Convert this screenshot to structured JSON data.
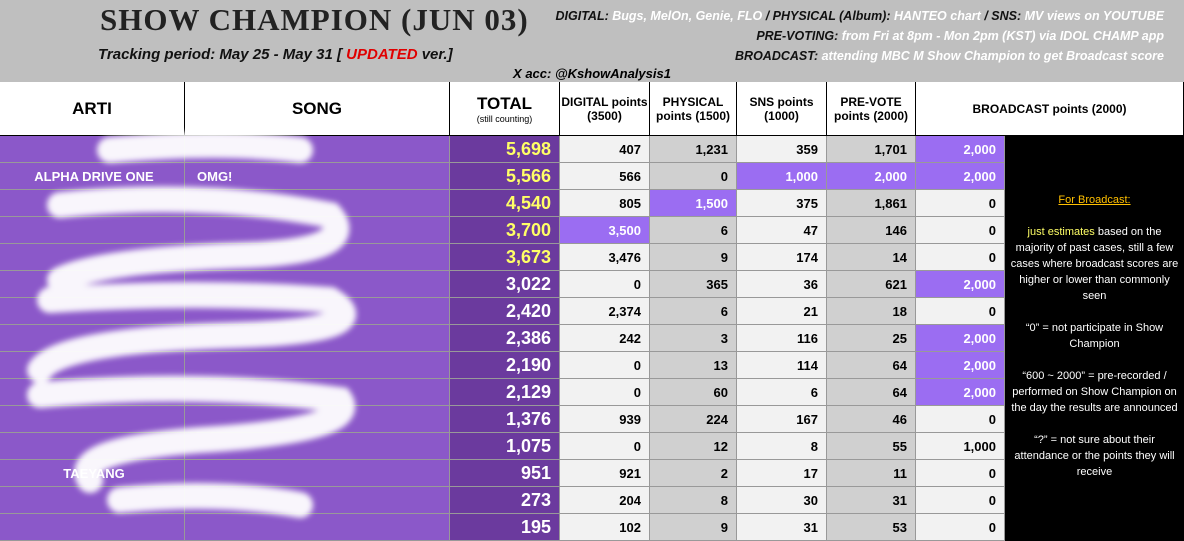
{
  "header": {
    "title": "SHOW CHAMPION (JUN 03)",
    "tracking_prefix": "Tracking period: May 25 - May 31 [",
    "tracking_updated": "UPDATED",
    "tracking_suffix": "ver.]",
    "account": "X acc: @KshowAnalysis1",
    "info_lines": [
      [
        {
          "label": "DIGITAL:",
          "value": "Bugs, MelOn, Genie, FLO"
        },
        {
          "label": "/ PHYSICAL (Album):",
          "value": "HANTEO chart"
        },
        {
          "label": "/ SNS:",
          "value": "MV views on YOUTUBE"
        }
      ],
      [
        {
          "label": "PRE-VOTING:",
          "value": "from Fri at 8pm - Mon 2pm (KST) via IDOL CHAMP app"
        }
      ],
      [
        {
          "label": "BROADCAST:",
          "value": "attending MBC M Show Champion to get Broadcast score"
        }
      ]
    ]
  },
  "table": {
    "columns": {
      "artist": "ARTI",
      "song": "SONG",
      "total": "TOTAL",
      "total_note": "(still counting)",
      "digital": "DIGITAL points (3500)",
      "physical": "PHYSICAL points (1500)",
      "sns": "SNS points (1000)",
      "prevote": "PRE-VOTE points (2000)",
      "broadcast": "BROADCAST points (2000)"
    },
    "rows": [
      {
        "total": "5,698",
        "digital": "407",
        "physical": "1,231",
        "sns": "359",
        "prevote": "1,701",
        "broadcast": "2,000",
        "highlight": [
          "total",
          "broadcast"
        ]
      },
      {
        "artist": "ALPHA DRIVE ONE",
        "song": "OMG!",
        "total": "5,566",
        "digital": "566",
        "physical": "0",
        "sns": "1,000",
        "prevote": "2,000",
        "broadcast": "2,000",
        "highlight": [
          "total",
          "sns",
          "prevote",
          "broadcast"
        ]
      },
      {
        "total": "4,540",
        "digital": "805",
        "physical": "1,500",
        "sns": "375",
        "prevote": "1,861",
        "broadcast": "0",
        "highlight": [
          "total",
          "physical"
        ]
      },
      {
        "total": "3,700",
        "digital": "3,500",
        "physical": "6",
        "sns": "47",
        "prevote": "146",
        "broadcast": "0",
        "highlight": [
          "total",
          "digital"
        ]
      },
      {
        "total": "3,673",
        "digital": "3,476",
        "physical": "9",
        "sns": "174",
        "prevote": "14",
        "broadcast": "0",
        "highlight": [
          "total"
        ]
      },
      {
        "total": "3,022",
        "digital": "0",
        "physical": "365",
        "sns": "36",
        "prevote": "621",
        "broadcast": "2,000",
        "highlight": [
          "broadcast"
        ]
      },
      {
        "total": "2,420",
        "digital": "2,374",
        "physical": "6",
        "sns": "21",
        "prevote": "18",
        "broadcast": "0",
        "highlight": []
      },
      {
        "total": "2,386",
        "digital": "242",
        "physical": "3",
        "sns": "116",
        "prevote": "25",
        "broadcast": "2,000",
        "highlight": [
          "broadcast"
        ]
      },
      {
        "total": "2,190",
        "digital": "0",
        "physical": "13",
        "sns": "114",
        "prevote": "64",
        "broadcast": "2,000",
        "highlight": [
          "broadcast"
        ]
      },
      {
        "total": "2,129",
        "digital": "0",
        "physical": "60",
        "sns": "6",
        "prevote": "64",
        "broadcast": "2,000",
        "highlight": [
          "broadcast"
        ]
      },
      {
        "total": "1,376",
        "digital": "939",
        "physical": "224",
        "sns": "167",
        "prevote": "46",
        "broadcast": "0",
        "highlight": []
      },
      {
        "total": "1,075",
        "digital": "0",
        "physical": "12",
        "sns": "8",
        "prevote": "55",
        "broadcast": "1,000",
        "highlight": []
      },
      {
        "artist": "TAEYANG",
        "total": "951",
        "digital": "921",
        "physical": "2",
        "sns": "17",
        "prevote": "11",
        "broadcast": "0",
        "highlight": []
      },
      {
        "total": "273",
        "digital": "204",
        "physical": "8",
        "sns": "30",
        "prevote": "31",
        "broadcast": "0",
        "highlight": []
      },
      {
        "total": "195",
        "digital": "102",
        "physical": "9",
        "sns": "31",
        "prevote": "53",
        "broadcast": "0",
        "highlight": []
      }
    ]
  },
  "notes": {
    "heading": "For Broadcast:",
    "estimate_lead": "just estimates",
    "estimate_rest": "based on the majority of past cases, still a few cases where broadcast scores are higher or lower than commonly seen",
    "zero": "“0” = not participate in Show Champion",
    "range": "“600 ~ 2000” = pre-recorded / performed on Show Champion on the day the results are announced",
    "unknown": "“?” = not sure about their attendance or the points they will receive"
  }
}
